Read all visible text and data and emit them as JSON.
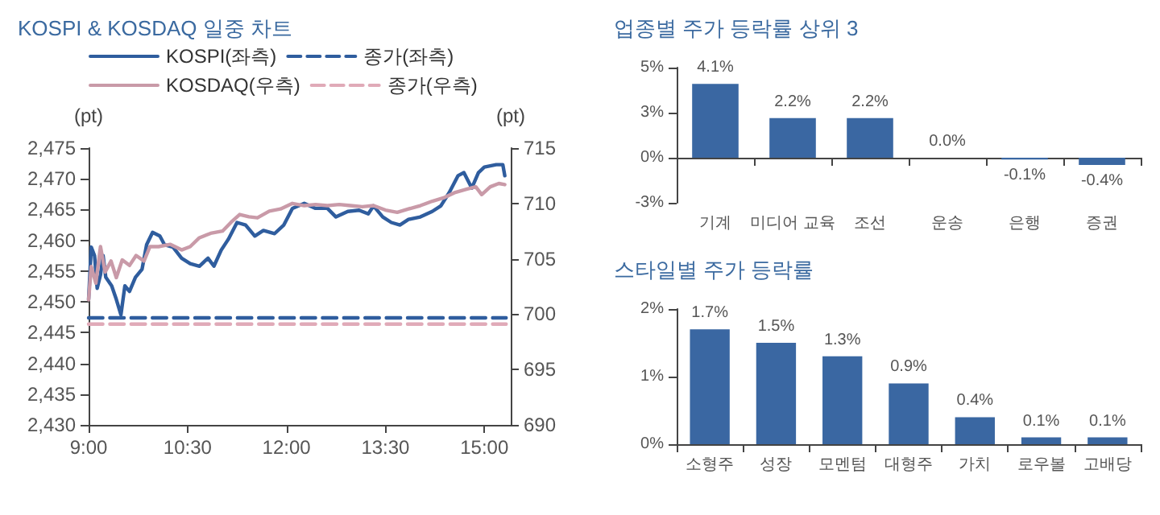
{
  "chart_data": [
    {
      "type": "line",
      "title": "KOSPI & KOSDAQ 일중 차트",
      "ylabel": "(pt)",
      "y2label": "(pt)",
      "xlim": [
        9,
        15.4
      ],
      "xticks": [
        {
          "value": 9,
          "label": "9:00"
        },
        {
          "value": 10.5,
          "label": "10:30"
        },
        {
          "value": 12,
          "label": "12:00"
        },
        {
          "value": 13.5,
          "label": "13:30"
        },
        {
          "value": 15,
          "label": "15:00"
        }
      ],
      "ylim": [
        2430,
        2475
      ],
      "yticks": [
        {
          "value": 2430,
          "label": "2,430"
        },
        {
          "value": 2435,
          "label": "2,435"
        },
        {
          "value": 2440,
          "label": "2,440"
        },
        {
          "value": 2445,
          "label": "2,445"
        },
        {
          "value": 2450,
          "label": "2,450"
        },
        {
          "value": 2455,
          "label": "2,455"
        },
        {
          "value": 2460,
          "label": "2,460"
        },
        {
          "value": 2465,
          "label": "2,465"
        },
        {
          "value": 2470,
          "label": "2,470"
        },
        {
          "value": 2475,
          "label": "2,475"
        }
      ],
      "y2lim": [
        690,
        715
      ],
      "y2ticks": [
        690,
        695,
        700,
        705,
        710,
        715
      ],
      "grid": false,
      "legend": "top",
      "marker": "none",
      "series": [
        {
          "name": "KOSPI(좌측)",
          "color": "#2f5d9e",
          "line_style": "solid",
          "x": [
            9.0,
            9.04,
            9.09,
            9.13,
            9.18,
            9.22,
            9.26,
            9.35,
            9.42,
            9.49,
            9.55,
            9.62,
            9.71,
            9.81,
            9.88,
            9.97,
            10.08,
            10.15,
            10.28,
            10.41,
            10.54,
            10.68,
            10.81,
            10.9,
            11.01,
            11.12,
            11.25,
            11.38,
            11.52,
            11.65,
            11.82,
            11.96,
            12.09,
            12.27,
            12.44,
            12.62,
            12.75,
            12.93,
            13.1,
            13.24,
            13.32,
            13.46,
            13.59,
            13.72,
            13.85,
            14.03,
            14.21,
            14.34,
            14.47,
            14.6,
            14.69,
            14.81,
            14.91,
            15.0,
            15.18,
            15.28,
            15.31
          ],
          "values": [
            2450.4,
            2458.9,
            2457.5,
            2452.2,
            2454.4,
            2457.5,
            2454.0,
            2452.6,
            2450.4,
            2447.9,
            2452.6,
            2451.7,
            2454.0,
            2455.3,
            2459.3,
            2461.3,
            2460.7,
            2459.3,
            2458.9,
            2457.1,
            2456.2,
            2455.8,
            2457.1,
            2455.8,
            2458.4,
            2460.2,
            2462.9,
            2462.5,
            2460.7,
            2461.6,
            2461.1,
            2462.5,
            2465.2,
            2466.0,
            2465.2,
            2465.2,
            2463.8,
            2464.7,
            2464.9,
            2464.3,
            2465.6,
            2463.8,
            2462.9,
            2462.5,
            2463.4,
            2463.8,
            2464.7,
            2465.6,
            2467.8,
            2470.5,
            2471.0,
            2468.5,
            2471.0,
            2471.9,
            2472.3,
            2472.3,
            2470.5
          ]
        },
        {
          "name": "종가(좌측)",
          "color": "#2f5d9e",
          "line_style": "dashed",
          "x": [
            9.0,
            15.33
          ],
          "values": [
            2447.4,
            2447.4
          ]
        },
        {
          "name": "KOSDAQ(우측)",
          "color": "#c99aa8",
          "line_style": "solid",
          "axis": "y2",
          "x": [
            9.0,
            9.04,
            9.11,
            9.18,
            9.25,
            9.34,
            9.42,
            9.51,
            9.62,
            9.72,
            9.84,
            9.93,
            10.06,
            10.24,
            10.41,
            10.54,
            10.68,
            10.85,
            11.03,
            11.16,
            11.29,
            11.43,
            11.56,
            11.74,
            11.91,
            12.09,
            12.27,
            12.44,
            12.62,
            12.8,
            12.97,
            13.15,
            13.32,
            13.5,
            13.68,
            13.85,
            14.03,
            14.21,
            14.38,
            14.56,
            14.74,
            14.87,
            14.96,
            15.09,
            15.22,
            15.31
          ],
          "values": [
            701.3,
            704.3,
            702.8,
            706.1,
            703.8,
            704.8,
            703.3,
            704.9,
            704.4,
            705.3,
            704.8,
            706.1,
            706.1,
            706.3,
            705.8,
            706.1,
            706.9,
            707.3,
            707.5,
            708.3,
            709.0,
            708.8,
            708.7,
            709.3,
            709.5,
            710.0,
            709.8,
            709.9,
            709.8,
            709.9,
            709.8,
            709.7,
            709.8,
            709.4,
            709.2,
            709.5,
            709.8,
            710.2,
            710.5,
            711.0,
            711.3,
            711.5,
            710.8,
            711.5,
            711.8,
            711.7
          ]
        },
        {
          "name": "종가(우측)",
          "color": "#e0aab8",
          "line_style": "dashed",
          "axis": "y2",
          "x": [
            9.0,
            15.33
          ],
          "values": [
            699.1,
            699.1
          ]
        }
      ]
    },
    {
      "type": "bar",
      "title": "업종별 주가 등락률 상위 3",
      "categories": [
        "기계",
        "미디어 교육",
        "조선",
        "운송",
        "은행",
        "증권"
      ],
      "values": [
        4.1,
        2.2,
        2.2,
        0.0,
        -0.1,
        -0.4
      ],
      "color": "#3a67a2",
      "value_labels": [
        "4.1%",
        "2.2%",
        "2.2%",
        "0.0%",
        "-0.1%",
        "-0.4%"
      ],
      "ylim": [
        -2.5,
        5
      ],
      "yticks": [
        {
          "value": -2.5,
          "label": "-3%"
        },
        {
          "value": 0,
          "label": "0%"
        },
        {
          "value": 2.5,
          "label": "3%"
        },
        {
          "value": 5,
          "label": "5%"
        }
      ]
    },
    {
      "type": "bar",
      "title": "스타일별 주가 등락률",
      "categories": [
        "소형주",
        "성장",
        "모멘텀",
        "대형주",
        "가치",
        "로우볼",
        "고배당"
      ],
      "values": [
        1.7,
        1.5,
        1.3,
        0.9,
        0.4,
        0.1,
        0.1
      ],
      "color": "#3a67a2",
      "value_labels": [
        "1.7%",
        "1.5%",
        "1.3%",
        "0.9%",
        "0.4%",
        "0.1%",
        "0.1%"
      ],
      "ylim": [
        0,
        2
      ],
      "yticks": [
        {
          "value": 0,
          "label": "0%"
        },
        {
          "value": 1,
          "label": "1%"
        },
        {
          "value": 2,
          "label": "2%"
        }
      ]
    }
  ]
}
